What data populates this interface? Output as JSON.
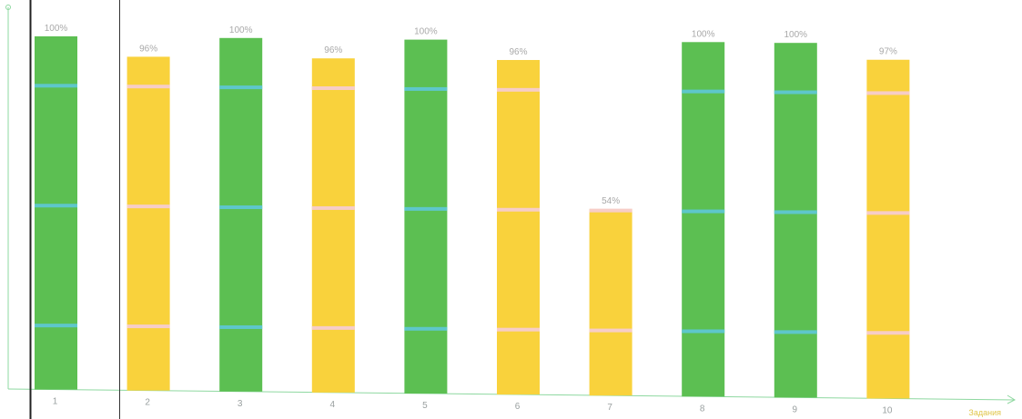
{
  "chart_data": {
    "type": "bar",
    "title": "",
    "xlabel": "Задания",
    "ylabel": "",
    "categories": [
      "1",
      "2",
      "3",
      "4",
      "5",
      "6",
      "7",
      "8",
      "9",
      "10"
    ],
    "values": [
      100,
      96,
      100,
      96,
      100,
      96,
      54,
      100,
      100,
      97
    ],
    "data_labels": [
      "100%",
      "96%",
      "100%",
      "96%",
      "100%",
      "96%",
      "54%",
      "100%",
      "100%",
      "97%"
    ],
    "ylim": [
      0,
      100
    ],
    "grid": false,
    "colors": {
      "full": "#5cbf52",
      "partial": "#f9d23c",
      "full_band": "#5ec8d8",
      "partial_band": "#f6ccd6",
      "axis": "#8ed8a0"
    }
  }
}
